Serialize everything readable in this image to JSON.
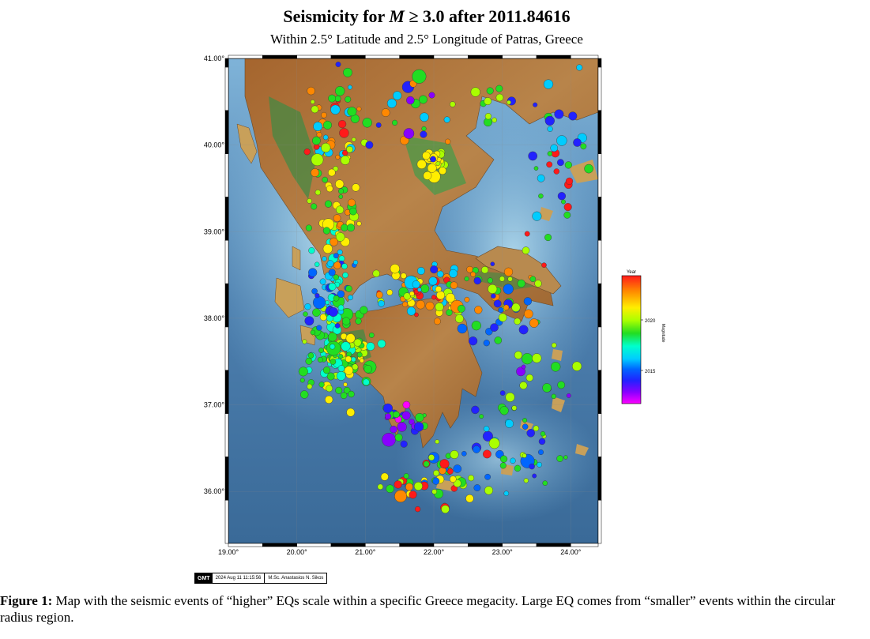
{
  "title": {
    "prefix": "Seismicity for ",
    "variable": "M",
    "suffix": " ≥ 3.0 after 2011.84616"
  },
  "subtitle": "Within 2.5° Latitude and 2.5° Longitude of Patras, Greece",
  "map": {
    "lat_range": [
      35.4,
      41.0
    ],
    "lon_range": [
      19.0,
      24.4
    ],
    "lat_ticks": [
      "41.00°",
      "40.00°",
      "39.00°",
      "38.00°",
      "37.00°",
      "36.00°"
    ],
    "lon_ticks": [
      "19.00°",
      "20.00°",
      "21.00°",
      "22.00°",
      "23.00°",
      "24.00°"
    ],
    "colors": {
      "sea_deep": "#3f6f9a",
      "sea_shallow": "#a9d7ee",
      "land_low": "#2f7f3f",
      "land_mid": "#c8b06a",
      "land_high": "#9a5a2a"
    }
  },
  "colorbar": {
    "label": "Year",
    "ticks": [
      "2020",
      "2015"
    ],
    "side_label": "Magnitude",
    "colors": [
      "#ff1a1a",
      "#ff8800",
      "#ffee00",
      "#aaff00",
      "#22dd22",
      "#00ffcc",
      "#00ccff",
      "#0066ff",
      "#2222ff",
      "#8800ff",
      "#ff00ff"
    ]
  },
  "stamp": {
    "logo": "GMT",
    "date": "2024 Aug 11 11:15:56",
    "author": "M.Sc. Anastasios N. Sikos"
  },
  "caption": {
    "label": "Figure 1:",
    "text": " Map with the seismic events of “higher” EQs scale within a specific Greece megacity. Large EQ comes from “smaller” events within the circular radius region."
  }
}
